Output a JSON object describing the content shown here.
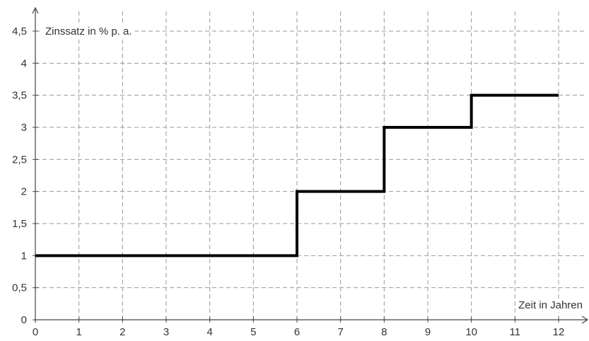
{
  "chart_data": {
    "type": "line",
    "step": true,
    "title": "",
    "xlabel": "Zeit in Jahren",
    "ylabel": "Zinssatz in % p. a.",
    "xlim": [
      0,
      12
    ],
    "ylim": [
      0,
      4.5
    ],
    "x_ticks": [
      0,
      1,
      2,
      3,
      4,
      5,
      6,
      7,
      8,
      9,
      10,
      11,
      12
    ],
    "x_tick_labels": [
      "0",
      "1",
      "2",
      "3",
      "4",
      "5",
      "6",
      "7",
      "8",
      "9",
      "10",
      "11",
      "12"
    ],
    "y_ticks": [
      0,
      0.5,
      1,
      1.5,
      2,
      2.5,
      3,
      3.5,
      4,
      4.5
    ],
    "y_tick_labels": [
      "0",
      "0,5",
      "1",
      "1,5",
      "2",
      "2,5",
      "3",
      "3,5",
      "4",
      "4,5"
    ],
    "grid": true,
    "series": [
      {
        "points": [
          {
            "x": 0,
            "y": 1
          },
          {
            "x": 6,
            "y": 1
          },
          {
            "x": 6,
            "y": 2
          },
          {
            "x": 8,
            "y": 2
          },
          {
            "x": 8,
            "y": 3
          },
          {
            "x": 10,
            "y": 3
          },
          {
            "x": 10,
            "y": 3.5
          },
          {
            "x": 12,
            "y": 3.5
          }
        ]
      }
    ],
    "colors": {
      "line": "#000000",
      "grid": "#9a9a9a",
      "axis": "#444444",
      "text": "#333333"
    }
  }
}
